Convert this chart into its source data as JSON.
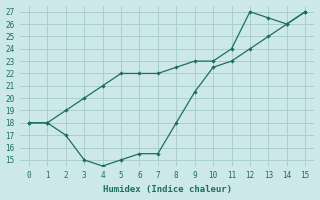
{
  "xlabel": "Humidex (Indice chaleur)",
  "xlim": [
    -0.5,
    15.5
  ],
  "ylim": [
    14.5,
    27.5
  ],
  "xticks": [
    0,
    1,
    2,
    3,
    4,
    5,
    6,
    7,
    8,
    9,
    10,
    11,
    12,
    13,
    14,
    15
  ],
  "yticks": [
    15,
    16,
    17,
    18,
    19,
    20,
    21,
    22,
    23,
    24,
    25,
    26,
    27
  ],
  "background_color": "#cce8e8",
  "grid_color": "#aacfcf",
  "line_color": "#1e6e5e",
  "line1_x": [
    0,
    1,
    2,
    3,
    4,
    5,
    6,
    7,
    8,
    9,
    10,
    11,
    12,
    13,
    14,
    15
  ],
  "line1_y": [
    18,
    18,
    17,
    15,
    14.5,
    15,
    15.5,
    15.5,
    18,
    20.5,
    22.5,
    23,
    24,
    25,
    26,
    27
  ],
  "line2_x": [
    0,
    1,
    2,
    3,
    4,
    5,
    6,
    7,
    8,
    9,
    10,
    11,
    12,
    13,
    14,
    15
  ],
  "line2_y": [
    18,
    18,
    19,
    20,
    21,
    22,
    22,
    22,
    22.5,
    23,
    23,
    24,
    27,
    26.5,
    26,
    27
  ]
}
